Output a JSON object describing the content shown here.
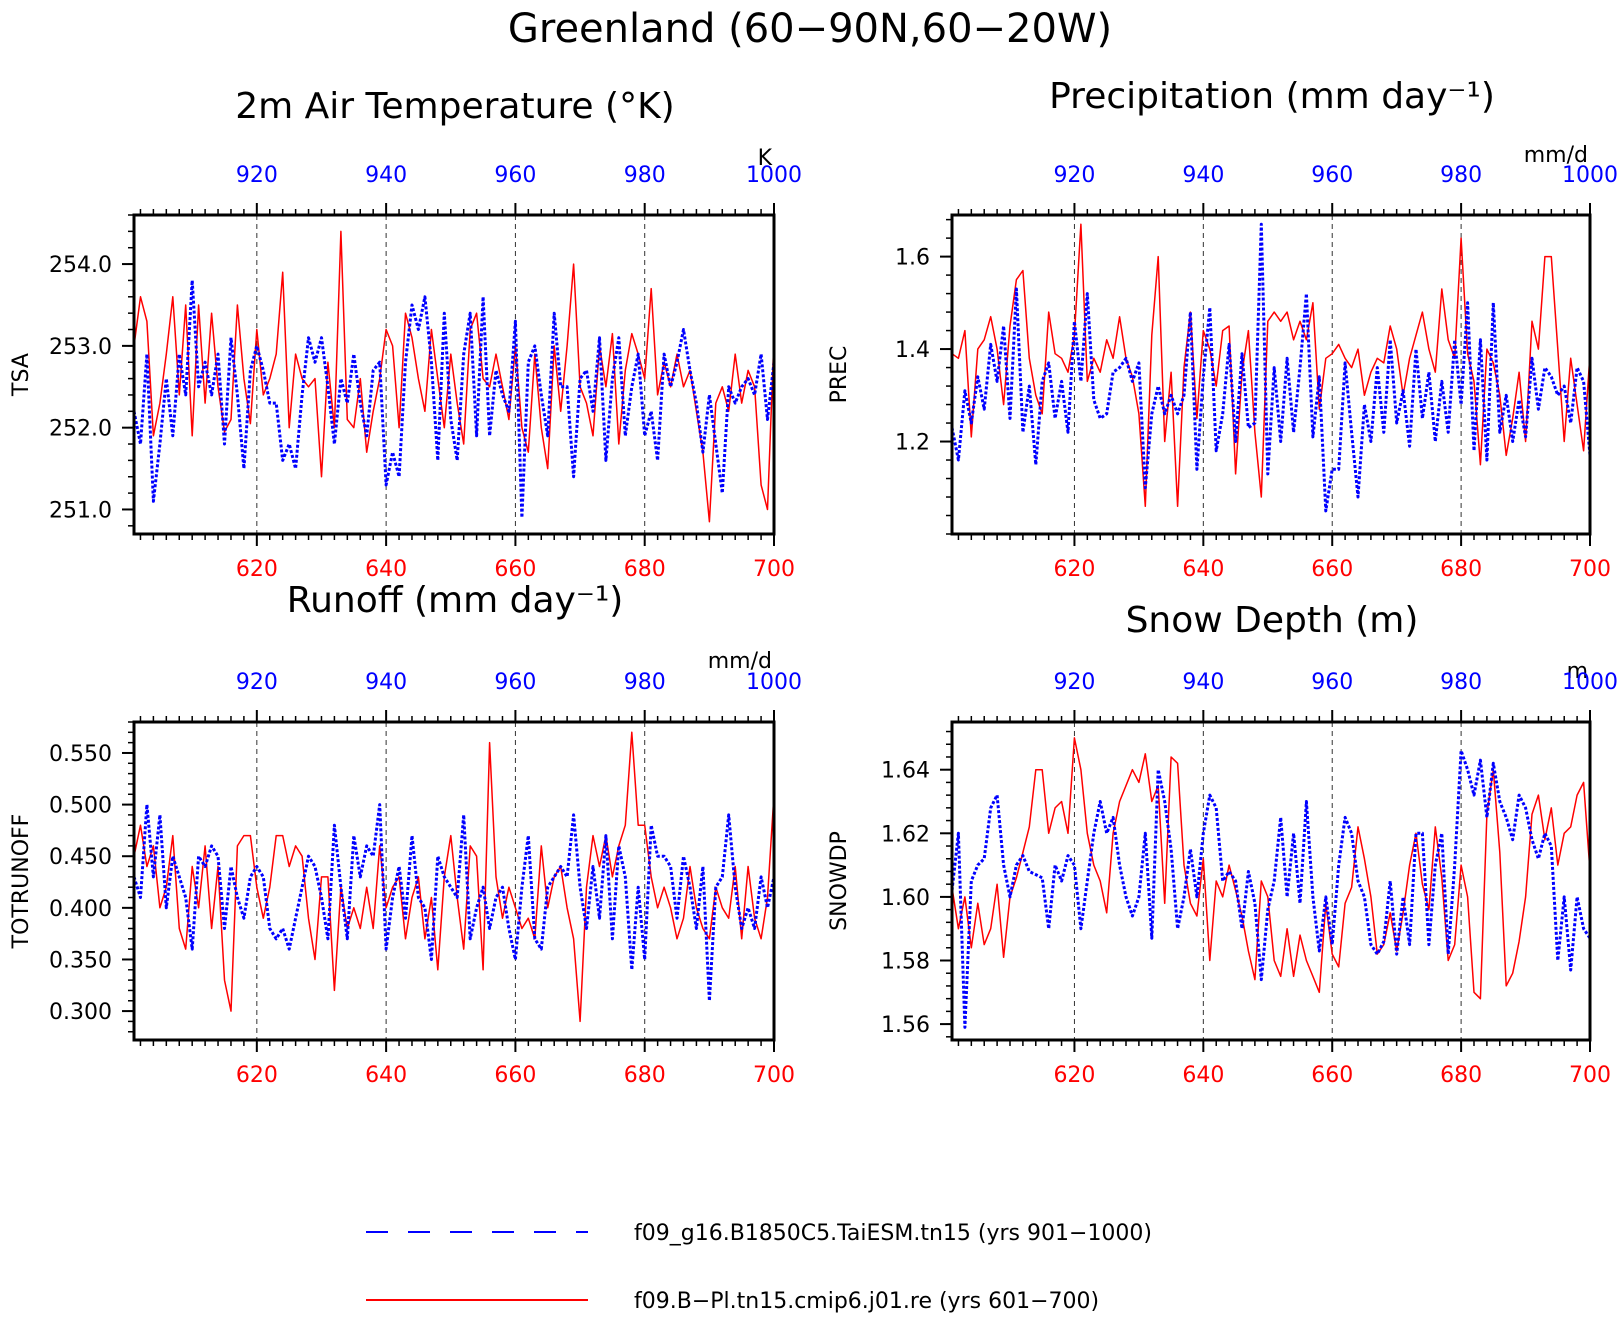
{
  "title": "Greenland (60−90N,60−20W)",
  "colors": {
    "pi": "#ff0000",
    "taiesm": "#0000ff",
    "frame": "#000000"
  },
  "legend": {
    "taiesm": "f09_g16.B1850C5.TaiESM.tn15 (yrs 901−1000)",
    "pi": "f09.B−Pl.tn15.cmip6.j01.re (yrs 601−700)"
  },
  "chart_data": [
    {
      "type": "line",
      "title": "2m Air Temperature (°K)",
      "ylabel": "TSA",
      "unit": "K",
      "grid": "dashed vertical lines at top-axis ticks",
      "x_bottom": {
        "ticks": [
          620,
          640,
          660,
          680,
          700
        ],
        "range": [
          601,
          700
        ]
      },
      "x_top": {
        "ticks": [
          920,
          940,
          960,
          980,
          1000
        ],
        "range": [
          901,
          1000
        ]
      },
      "ylim": [
        250.7,
        254.6
      ],
      "yticks": [
        251.0,
        252.0,
        253.0,
        254.0
      ],
      "ytick_labels": [
        "251.0",
        "252.0",
        "253.0",
        "254.0"
      ],
      "series": [
        {
          "name": "f09.B−Pl.tn15.cmip6.j01.re (yrs 601−700)",
          "axis": "bottom",
          "style": "solid",
          "values": [
            253.0,
            253.6,
            253.3,
            251.9,
            252.3,
            252.9,
            253.6,
            252.4,
            253.5,
            251.9,
            253.5,
            252.3,
            253.4,
            252.5,
            251.95,
            252.1,
            253.5,
            252.6,
            252.05,
            253.2,
            252.4,
            252.6,
            252.9,
            253.9,
            252.0,
            252.9,
            252.6,
            252.5,
            252.6,
            251.4,
            252.8,
            252.0,
            254.4,
            252.1,
            252.0,
            252.6,
            251.7,
            252.2,
            252.6,
            253.2,
            253.0,
            252.0,
            253.4,
            253.1,
            252.6,
            252.2,
            253.2,
            252.6,
            252.0,
            252.9,
            252.3,
            251.8,
            253.2,
            253.4,
            252.6,
            252.5,
            252.9,
            252.5,
            252.1,
            253.0,
            252.0,
            251.7,
            252.9,
            252.0,
            251.5,
            253.0,
            252.2,
            253.0,
            254.0,
            252.5,
            252.3,
            251.9,
            253.0,
            252.5,
            253.15,
            251.8,
            252.7,
            253.15,
            252.9,
            252.6,
            253.7,
            252.4,
            252.8,
            252.5,
            252.9,
            252.5,
            252.7,
            252.2,
            251.7,
            250.85,
            252.3,
            252.5,
            252.2,
            252.9,
            252.3,
            252.7,
            252.5,
            251.3,
            251.0,
            253.1
          ]
        },
        {
          "name": "f09_g16.B1850C5.TaiESM.tn15 (yrs 901−1000)",
          "axis": "top",
          "style": "dashed",
          "values": [
            252.2,
            251.8,
            252.9,
            251.1,
            251.8,
            252.6,
            251.9,
            252.9,
            252.4,
            253.8,
            252.5,
            252.8,
            252.4,
            252.9,
            251.8,
            253.1,
            252.4,
            251.5,
            252.7,
            253.0,
            252.7,
            252.3,
            252.3,
            251.6,
            251.8,
            251.5,
            252.4,
            253.1,
            252.8,
            253.1,
            252.5,
            251.8,
            252.6,
            252.3,
            252.9,
            252.3,
            251.9,
            252.7,
            252.8,
            251.3,
            251.7,
            251.4,
            252.8,
            253.5,
            253.2,
            253.6,
            252.8,
            251.6,
            253.4,
            252.1,
            251.6,
            252.9,
            253.4,
            251.9,
            253.6,
            251.9,
            252.7,
            252.4,
            252.2,
            253.3,
            250.9,
            252.8,
            253.0,
            252.4,
            251.9,
            253.4,
            252.5,
            252.5,
            251.4,
            252.6,
            252.7,
            252.2,
            253.1,
            251.6,
            252.6,
            253.1,
            251.9,
            252.5,
            252.9,
            251.9,
            252.2,
            251.6,
            252.9,
            252.5,
            252.8,
            253.2,
            252.7,
            252.3,
            251.7,
            252.4,
            251.8,
            251.2,
            252.5,
            252.3,
            252.5,
            252.6,
            252.4,
            252.9,
            252.1,
            252.8
          ]
        }
      ]
    },
    {
      "type": "line",
      "title": "Precipitation (mm day⁻¹)",
      "ylabel": "PREC",
      "unit": "mm/d",
      "grid": "dashed vertical lines at top-axis ticks",
      "x_bottom": {
        "ticks": [
          620,
          640,
          660,
          680,
          700
        ],
        "range": [
          601,
          700
        ]
      },
      "x_top": {
        "ticks": [
          920,
          940,
          960,
          980,
          1000
        ],
        "range": [
          901,
          1000
        ]
      },
      "ylim": [
        1.0,
        1.69
      ],
      "yticks": [
        1.2,
        1.4,
        1.6
      ],
      "ytick_labels": [
        "1.2",
        "1.4",
        "1.6"
      ],
      "series": [
        {
          "name": "f09.B−Pl.tn15.cmip6.j01.re (yrs 601−700)",
          "axis": "bottom",
          "style": "solid",
          "values": [
            1.39,
            1.38,
            1.44,
            1.21,
            1.4,
            1.42,
            1.47,
            1.4,
            1.28,
            1.45,
            1.55,
            1.57,
            1.38,
            1.3,
            1.26,
            1.48,
            1.39,
            1.38,
            1.35,
            1.43,
            1.67,
            1.33,
            1.38,
            1.35,
            1.42,
            1.38,
            1.47,
            1.38,
            1.34,
            1.26,
            1.06,
            1.43,
            1.6,
            1.2,
            1.35,
            1.06,
            1.36,
            1.48,
            1.25,
            1.44,
            1.4,
            1.32,
            1.44,
            1.45,
            1.13,
            1.35,
            1.44,
            1.22,
            1.08,
            1.46,
            1.48,
            1.46,
            1.48,
            1.42,
            1.46,
            1.42,
            1.5,
            1.27,
            1.38,
            1.39,
            1.41,
            1.38,
            1.36,
            1.4,
            1.3,
            1.35,
            1.38,
            1.37,
            1.45,
            1.4,
            1.3,
            1.38,
            1.43,
            1.48,
            1.4,
            1.35,
            1.53,
            1.42,
            1.38,
            1.64,
            1.39,
            1.33,
            1.15,
            1.4,
            1.37,
            1.3,
            1.17,
            1.25,
            1.35,
            1.2,
            1.46,
            1.4,
            1.6,
            1.6,
            1.4,
            1.2,
            1.38,
            1.28,
            1.18,
            1.39
          ]
        },
        {
          "name": "f09_g16.B1850C5.TaiESM.tn15 (yrs 901−1000)",
          "axis": "top",
          "style": "dashed",
          "values": [
            1.23,
            1.16,
            1.31,
            1.24,
            1.34,
            1.27,
            1.41,
            1.33,
            1.45,
            1.25,
            1.53,
            1.22,
            1.32,
            1.15,
            1.33,
            1.37,
            1.25,
            1.33,
            1.22,
            1.46,
            1.33,
            1.52,
            1.29,
            1.25,
            1.26,
            1.35,
            1.36,
            1.38,
            1.33,
            1.37,
            1.1,
            1.26,
            1.32,
            1.26,
            1.3,
            1.26,
            1.3,
            1.48,
            1.14,
            1.34,
            1.49,
            1.18,
            1.26,
            1.41,
            1.2,
            1.39,
            1.23,
            1.24,
            1.67,
            1.13,
            1.36,
            1.2,
            1.38,
            1.22,
            1.36,
            1.52,
            1.21,
            1.34,
            1.05,
            1.14,
            1.14,
            1.37,
            1.22,
            1.08,
            1.28,
            1.2,
            1.36,
            1.22,
            1.42,
            1.24,
            1.31,
            1.19,
            1.4,
            1.25,
            1.35,
            1.2,
            1.33,
            1.22,
            1.42,
            1.28,
            1.5,
            1.18,
            1.42,
            1.16,
            1.5,
            1.22,
            1.3,
            1.2,
            1.29,
            1.21,
            1.38,
            1.27,
            1.36,
            1.34,
            1.3,
            1.32,
            1.24,
            1.36,
            1.33,
            1.17
          ]
        }
      ]
    },
    {
      "type": "line",
      "title": "Runoff (mm day⁻¹)",
      "ylabel": "TOTRUNOFF",
      "unit": "mm/d",
      "grid": "dashed vertical lines at top-axis ticks",
      "x_bottom": {
        "ticks": [
          620,
          640,
          660,
          680,
          700
        ],
        "range": [
          601,
          700
        ]
      },
      "x_top": {
        "ticks": [
          920,
          940,
          960,
          980,
          1000
        ],
        "range": [
          901,
          1000
        ]
      },
      "ylim": [
        0.272,
        0.58
      ],
      "yticks": [
        0.3,
        0.35,
        0.4,
        0.45,
        0.5,
        0.55
      ],
      "ytick_labels": [
        "0.300",
        "0.350",
        "0.400",
        "0.450",
        "0.500",
        "0.550"
      ],
      "series": [
        {
          "name": "f09.B−Pl.tn15.cmip6.j01.re (yrs 601−700)",
          "axis": "bottom",
          "style": "solid",
          "values": [
            0.45,
            0.48,
            0.44,
            0.46,
            0.4,
            0.42,
            0.47,
            0.38,
            0.36,
            0.44,
            0.4,
            0.46,
            0.38,
            0.44,
            0.33,
            0.3,
            0.46,
            0.47,
            0.47,
            0.42,
            0.39,
            0.42,
            0.47,
            0.47,
            0.44,
            0.46,
            0.45,
            0.39,
            0.35,
            0.43,
            0.43,
            0.32,
            0.42,
            0.38,
            0.4,
            0.38,
            0.42,
            0.38,
            0.46,
            0.4,
            0.42,
            0.43,
            0.37,
            0.41,
            0.43,
            0.37,
            0.41,
            0.34,
            0.43,
            0.47,
            0.41,
            0.36,
            0.46,
            0.45,
            0.34,
            0.56,
            0.43,
            0.39,
            0.42,
            0.4,
            0.38,
            0.39,
            0.37,
            0.46,
            0.4,
            0.43,
            0.44,
            0.4,
            0.37,
            0.29,
            0.42,
            0.47,
            0.44,
            0.47,
            0.43,
            0.46,
            0.48,
            0.57,
            0.48,
            0.48,
            0.43,
            0.4,
            0.42,
            0.4,
            0.37,
            0.39,
            0.44,
            0.4,
            0.38,
            0.37,
            0.42,
            0.4,
            0.39,
            0.44,
            0.37,
            0.44,
            0.39,
            0.37,
            0.41,
            0.51
          ]
        },
        {
          "name": "f09_g16.B1850C5.TaiESM.tn15 (yrs 901−1000)",
          "axis": "top",
          "style": "dashed",
          "values": [
            0.43,
            0.41,
            0.5,
            0.43,
            0.49,
            0.4,
            0.45,
            0.43,
            0.41,
            0.36,
            0.45,
            0.44,
            0.46,
            0.45,
            0.38,
            0.44,
            0.41,
            0.39,
            0.43,
            0.44,
            0.43,
            0.38,
            0.37,
            0.38,
            0.36,
            0.39,
            0.42,
            0.45,
            0.44,
            0.41,
            0.37,
            0.48,
            0.42,
            0.37,
            0.47,
            0.43,
            0.46,
            0.45,
            0.5,
            0.36,
            0.41,
            0.44,
            0.39,
            0.47,
            0.41,
            0.4,
            0.35,
            0.45,
            0.43,
            0.42,
            0.41,
            0.49,
            0.37,
            0.4,
            0.42,
            0.38,
            0.41,
            0.42,
            0.38,
            0.35,
            0.42,
            0.47,
            0.37,
            0.36,
            0.42,
            0.43,
            0.44,
            0.43,
            0.49,
            0.42,
            0.38,
            0.44,
            0.39,
            0.47,
            0.37,
            0.46,
            0.43,
            0.34,
            0.42,
            0.35,
            0.48,
            0.45,
            0.45,
            0.44,
            0.39,
            0.45,
            0.42,
            0.38,
            0.44,
            0.31,
            0.42,
            0.43,
            0.49,
            0.42,
            0.38,
            0.4,
            0.38,
            0.43,
            0.4,
            0.43
          ]
        }
      ]
    },
    {
      "type": "line",
      "title": "Snow Depth (m)",
      "ylabel": "SNOWDP",
      "unit": "m",
      "grid": "dashed vertical lines at top-axis ticks",
      "x_bottom": {
        "ticks": [
          620,
          640,
          660,
          680,
          700
        ],
        "range": [
          601,
          700
        ]
      },
      "x_top": {
        "ticks": [
          920,
          940,
          960,
          980,
          1000
        ],
        "range": [
          901,
          1000
        ]
      },
      "ylim": [
        1.555,
        1.655
      ],
      "yticks": [
        1.56,
        1.58,
        1.6,
        1.62,
        1.64
      ],
      "ytick_labels": [
        "1.56",
        "1.58",
        "1.60",
        "1.62",
        "1.64"
      ],
      "series": [
        {
          "name": "f09.B−Pl.tn15.cmip6.j01.re (yrs 601−700)",
          "axis": "bottom",
          "style": "solid",
          "values": [
            1.603,
            1.59,
            1.6,
            1.584,
            1.598,
            1.585,
            1.59,
            1.604,
            1.581,
            1.6,
            1.606,
            1.614,
            1.622,
            1.64,
            1.64,
            1.62,
            1.628,
            1.63,
            1.62,
            1.65,
            1.64,
            1.62,
            1.61,
            1.605,
            1.595,
            1.62,
            1.63,
            1.635,
            1.64,
            1.636,
            1.645,
            1.63,
            1.635,
            1.598,
            1.644,
            1.642,
            1.61,
            1.598,
            1.594,
            1.612,
            1.58,
            1.605,
            1.6,
            1.61,
            1.602,
            1.594,
            1.583,
            1.574,
            1.605,
            1.6,
            1.58,
            1.575,
            1.59,
            1.575,
            1.588,
            1.58,
            1.575,
            1.57,
            1.598,
            1.582,
            1.578,
            1.598,
            1.603,
            1.622,
            1.612,
            1.6,
            1.582,
            1.585,
            1.595,
            1.583,
            1.595,
            1.61,
            1.62,
            1.604,
            1.596,
            1.622,
            1.606,
            1.58,
            1.585,
            1.61,
            1.6,
            1.57,
            1.568,
            1.626,
            1.64,
            1.614,
            1.572,
            1.576,
            1.586,
            1.6,
            1.626,
            1.632,
            1.618,
            1.628,
            1.61,
            1.62,
            1.622,
            1.632,
            1.636,
            1.608
          ]
        },
        {
          "name": "f09_g16.B1850C5.TaiESM.tn15 (yrs 901−1000)",
          "axis": "top",
          "style": "dashed",
          "values": [
            1.602,
            1.62,
            1.559,
            1.605,
            1.61,
            1.612,
            1.628,
            1.632,
            1.61,
            1.6,
            1.61,
            1.613,
            1.608,
            1.607,
            1.606,
            1.59,
            1.61,
            1.605,
            1.613,
            1.61,
            1.59,
            1.605,
            1.62,
            1.63,
            1.62,
            1.625,
            1.61,
            1.6,
            1.594,
            1.6,
            1.62,
            1.587,
            1.64,
            1.63,
            1.615,
            1.59,
            1.6,
            1.615,
            1.6,
            1.62,
            1.632,
            1.628,
            1.605,
            1.608,
            1.605,
            1.59,
            1.608,
            1.598,
            1.574,
            1.596,
            1.605,
            1.625,
            1.6,
            1.62,
            1.598,
            1.63,
            1.6,
            1.583,
            1.6,
            1.585,
            1.61,
            1.625,
            1.62,
            1.605,
            1.6,
            1.585,
            1.582,
            1.586,
            1.605,
            1.582,
            1.6,
            1.585,
            1.62,
            1.62,
            1.585,
            1.61,
            1.62,
            1.582,
            1.61,
            1.646,
            1.64,
            1.632,
            1.643,
            1.625,
            1.642,
            1.63,
            1.625,
            1.618,
            1.632,
            1.628,
            1.618,
            1.612,
            1.62,
            1.616,
            1.58,
            1.6,
            1.577,
            1.6,
            1.59,
            1.587
          ]
        }
      ]
    }
  ]
}
